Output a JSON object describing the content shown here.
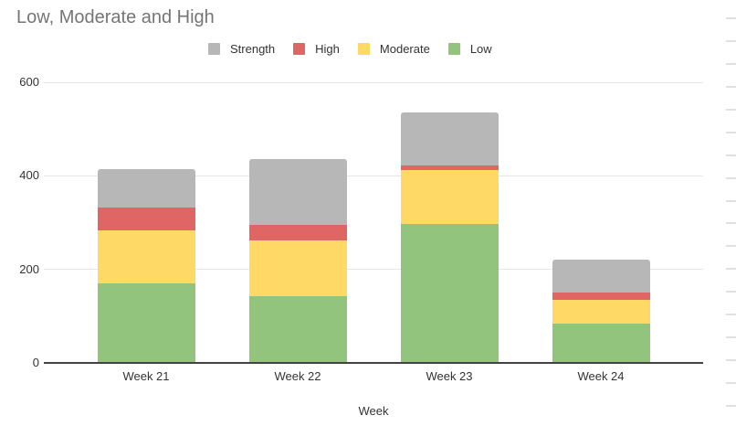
{
  "title": "Low, Moderate and High",
  "legend": {
    "items": [
      {
        "label": "Strength",
        "color": "#b7b7b7"
      },
      {
        "label": "High",
        "color": "#e06666"
      },
      {
        "label": "Moderate",
        "color": "#ffd966"
      },
      {
        "label": "Low",
        "color": "#93c47d"
      }
    ]
  },
  "chart_data": {
    "type": "bar",
    "stacked": true,
    "title": "Low, Moderate and High",
    "xlabel": "Week",
    "ylabel": "",
    "categories": [
      "Week 21",
      "Week 22",
      "Week 23",
      "Week 24"
    ],
    "series": [
      {
        "name": "Low",
        "color": "#93c47d",
        "values": [
          170,
          142,
          298,
          85
        ]
      },
      {
        "name": "Moderate",
        "color": "#ffd966",
        "values": [
          113,
          120,
          115,
          49
        ]
      },
      {
        "name": "High",
        "color": "#e06666",
        "values": [
          50,
          33,
          10,
          17
        ]
      },
      {
        "name": "Strength",
        "color": "#b7b7b7",
        "values": [
          82,
          140,
          112,
          70
        ]
      }
    ],
    "totals": [
      415,
      435,
      535,
      221
    ],
    "ylim": [
      0,
      600
    ],
    "yticks": [
      0,
      200,
      400,
      600
    ],
    "legend_position": "top",
    "grid": true
  },
  "colors": {
    "background": "#ffffff",
    "title_text": "#757575",
    "axis_text": "#333333",
    "gridline": "#e6e6e6",
    "axis_line": "#424242",
    "sheet_tick": "#e1e1e1"
  }
}
